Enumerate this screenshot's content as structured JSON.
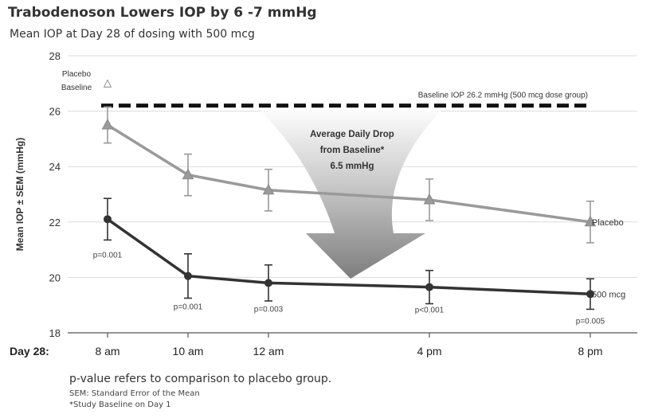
{
  "title": "Trabodenoson Lowers IOP by 6 -7 mmHg",
  "subtitle": "Mean IOP at Day 28 of dosing with 500 mcg",
  "chart_data": {
    "type": "line",
    "ylabel": "Mean IOP ± SEM (mmHg)",
    "xlabel": "Day 28:",
    "ylim": [
      18,
      28
    ],
    "yticks": [
      18,
      20,
      22,
      24,
      26,
      28
    ],
    "categories": [
      "8 am",
      "10 am",
      "12 am",
      "4 pm",
      "8 pm"
    ],
    "x_hours": [
      0,
      2,
      4,
      8,
      12
    ],
    "grid": true,
    "series": [
      {
        "name": "Placebo",
        "color": "#9a9a9a",
        "marker": "triangle",
        "values": [
          25.5,
          23.7,
          23.15,
          22.8,
          22.0
        ],
        "errors": [
          0.65,
          0.75,
          0.75,
          0.75,
          0.75
        ]
      },
      {
        "name": "500 mcg",
        "color": "#333333",
        "marker": "circle",
        "values": [
          22.1,
          20.05,
          19.8,
          19.65,
          19.4
        ],
        "errors": [
          0.75,
          0.8,
          0.65,
          0.6,
          0.55
        ]
      }
    ],
    "p_values": [
      "p=0.001",
      "p=0.001",
      "p=0.003",
      "p<0.001",
      "p=0.005"
    ],
    "baseline": {
      "label": "Baseline IOP 26.2 mmHg (500 mcg dose group)",
      "value": 26.2
    },
    "placebo_baseline": {
      "label_line1": "Placebo",
      "label_line2": "Baseline",
      "marker": "△"
    },
    "arrow_annotation": {
      "line1": "Average Daily Drop",
      "line2": "from Baseline*",
      "line3": "6.5 mmHg"
    }
  },
  "footnotes": {
    "main": "p-value refers to comparison to placebo group.",
    "sem": "SEM: Standard Error of the Mean",
    "baseline": "*Study Baseline on Day 1"
  }
}
